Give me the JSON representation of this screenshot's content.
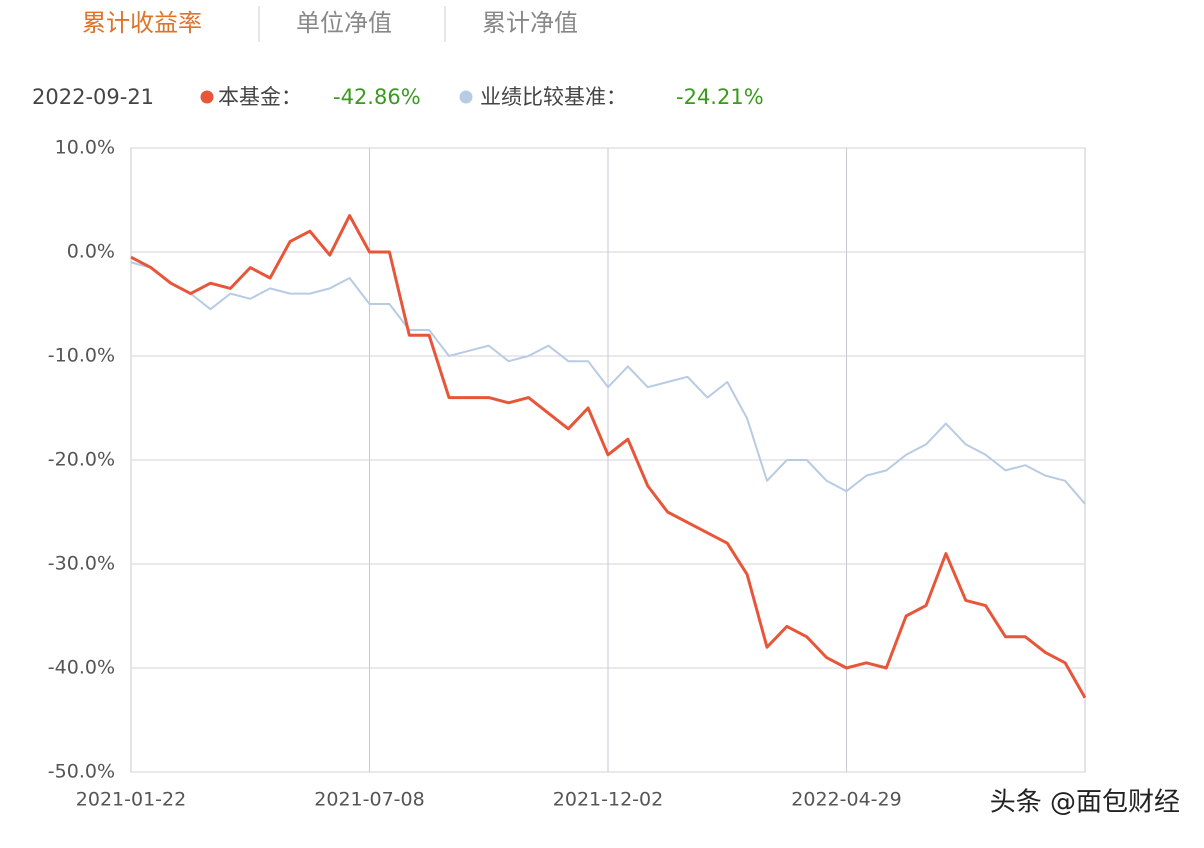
{
  "tabs": [
    "累计收益率",
    "单位净值",
    "累计净值"
  ],
  "chart_data": {
    "type": "line",
    "date": "2022-09-21",
    "categories": [
      "2021-01-22",
      null,
      null,
      null,
      null,
      null,
      null,
      null,
      null,
      null,
      null,
      null,
      "2021-07-08",
      null,
      null,
      null,
      null,
      null,
      null,
      null,
      null,
      null,
      null,
      null,
      "2021-12-02",
      null,
      null,
      null,
      null,
      null,
      null,
      null,
      null,
      null,
      null,
      null,
      "2022-04-29",
      null,
      null,
      null,
      null,
      null,
      null,
      null,
      null,
      null,
      null,
      null,
      null
    ],
    "series": [
      {
        "name": "本基金：",
        "color": "#e8563a",
        "values": [
          -0.5,
          -1.5,
          -3,
          -4,
          -3,
          -3.5,
          -1.5,
          -2.5,
          1,
          2,
          -0.3,
          3.5,
          0,
          0,
          -8,
          -8,
          -14,
          -14,
          -14,
          -14.5,
          -14,
          -15.5,
          -17,
          -15,
          -19.5,
          -18,
          -22.5,
          -25,
          -26,
          -27,
          -28,
          -31,
          -38,
          -36,
          -37,
          -39,
          -40,
          -39.5,
          -40,
          -35,
          -34,
          -29,
          -33.5,
          -34,
          -37,
          -37,
          -38.5,
          -39.5,
          -42.86
        ],
        "latest": {
          "value": -42.86,
          "label": "-42.86%"
        }
      },
      {
        "name": "业绩比较基准：",
        "color": "#b8cbe4",
        "values": [
          -1,
          -1.5,
          -3,
          -4,
          -5.5,
          -4,
          -4.5,
          -3.5,
          -4,
          -4,
          -3.5,
          -2.5,
          -5,
          -5,
          -7.5,
          -7.5,
          -10,
          -9.5,
          -9,
          -10.5,
          -10,
          -9,
          -10.5,
          -10.5,
          -13,
          -11,
          -13,
          -12.5,
          -12,
          -14,
          -12.5,
          -16,
          -22,
          -20,
          -20,
          -22,
          -23,
          -21.5,
          -21,
          -19.5,
          -18.5,
          -16.5,
          -18.5,
          -19.5,
          -21,
          -20.5,
          -21.5,
          -22,
          -24.21
        ],
        "latest": {
          "value": -24.21,
          "label": "-24.21%"
        }
      }
    ],
    "ylim": [
      -50,
      10
    ],
    "yticks": [
      {
        "value": 10,
        "label": "10.0%"
      },
      {
        "value": 0,
        "label": "0.0%"
      },
      {
        "value": -10,
        "label": "-10.0%"
      },
      {
        "value": -20,
        "label": "-20.0%"
      },
      {
        "value": -30,
        "label": "-30.0%"
      },
      {
        "value": -40,
        "label": "-40.0%"
      },
      {
        "value": -50,
        "label": "-50.0%"
      }
    ],
    "grid": true
  },
  "watermark": "头条 @面包财经"
}
